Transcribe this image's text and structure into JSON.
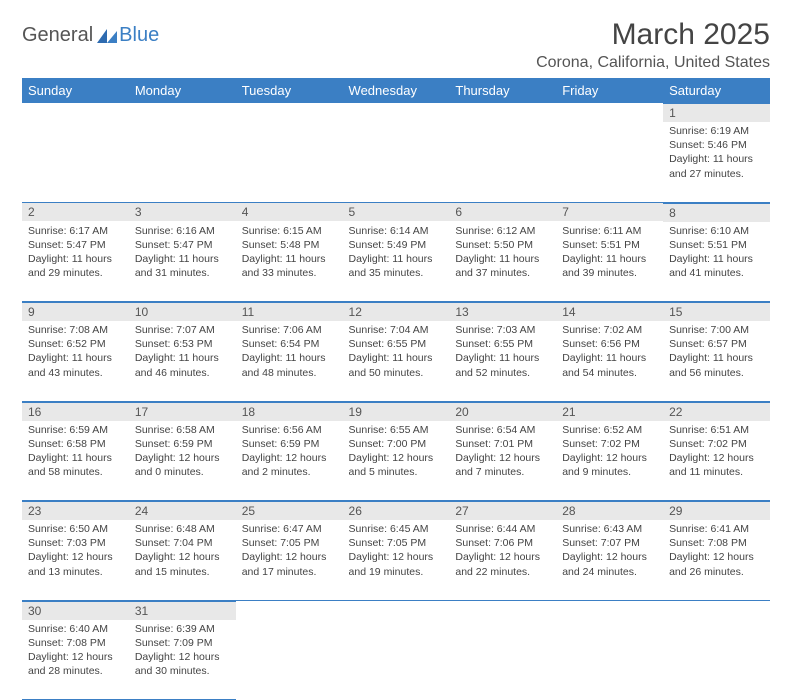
{
  "logo": {
    "general": "General",
    "blue": "Blue"
  },
  "title": "March 2025",
  "location": "Corona, California, United States",
  "colors": {
    "header_bg": "#3b7fc4",
    "header_fg": "#ffffff",
    "daynum_bg": "#e8e8e8",
    "border": "#3b7fc4",
    "text": "#444444"
  },
  "weekdays": [
    "Sunday",
    "Monday",
    "Tuesday",
    "Wednesday",
    "Thursday",
    "Friday",
    "Saturday"
  ],
  "weeks": [
    [
      null,
      null,
      null,
      null,
      null,
      null,
      {
        "n": "1",
        "sr": "6:19 AM",
        "ss": "5:46 PM",
        "dh": "11",
        "dm": "27"
      }
    ],
    [
      {
        "n": "2",
        "sr": "6:17 AM",
        "ss": "5:47 PM",
        "dh": "11",
        "dm": "29"
      },
      {
        "n": "3",
        "sr": "6:16 AM",
        "ss": "5:47 PM",
        "dh": "11",
        "dm": "31"
      },
      {
        "n": "4",
        "sr": "6:15 AM",
        "ss": "5:48 PM",
        "dh": "11",
        "dm": "33"
      },
      {
        "n": "5",
        "sr": "6:14 AM",
        "ss": "5:49 PM",
        "dh": "11",
        "dm": "35"
      },
      {
        "n": "6",
        "sr": "6:12 AM",
        "ss": "5:50 PM",
        "dh": "11",
        "dm": "37"
      },
      {
        "n": "7",
        "sr": "6:11 AM",
        "ss": "5:51 PM",
        "dh": "11",
        "dm": "39"
      },
      {
        "n": "8",
        "sr": "6:10 AM",
        "ss": "5:51 PM",
        "dh": "11",
        "dm": "41"
      }
    ],
    [
      {
        "n": "9",
        "sr": "7:08 AM",
        "ss": "6:52 PM",
        "dh": "11",
        "dm": "43"
      },
      {
        "n": "10",
        "sr": "7:07 AM",
        "ss": "6:53 PM",
        "dh": "11",
        "dm": "46"
      },
      {
        "n": "11",
        "sr": "7:06 AM",
        "ss": "6:54 PM",
        "dh": "11",
        "dm": "48"
      },
      {
        "n": "12",
        "sr": "7:04 AM",
        "ss": "6:55 PM",
        "dh": "11",
        "dm": "50"
      },
      {
        "n": "13",
        "sr": "7:03 AM",
        "ss": "6:55 PM",
        "dh": "11",
        "dm": "52"
      },
      {
        "n": "14",
        "sr": "7:02 AM",
        "ss": "6:56 PM",
        "dh": "11",
        "dm": "54"
      },
      {
        "n": "15",
        "sr": "7:00 AM",
        "ss": "6:57 PM",
        "dh": "11",
        "dm": "56"
      }
    ],
    [
      {
        "n": "16",
        "sr": "6:59 AM",
        "ss": "6:58 PM",
        "dh": "11",
        "dm": "58"
      },
      {
        "n": "17",
        "sr": "6:58 AM",
        "ss": "6:59 PM",
        "dh": "12",
        "dm": "0"
      },
      {
        "n": "18",
        "sr": "6:56 AM",
        "ss": "6:59 PM",
        "dh": "12",
        "dm": "2"
      },
      {
        "n": "19",
        "sr": "6:55 AM",
        "ss": "7:00 PM",
        "dh": "12",
        "dm": "5"
      },
      {
        "n": "20",
        "sr": "6:54 AM",
        "ss": "7:01 PM",
        "dh": "12",
        "dm": "7"
      },
      {
        "n": "21",
        "sr": "6:52 AM",
        "ss": "7:02 PM",
        "dh": "12",
        "dm": "9"
      },
      {
        "n": "22",
        "sr": "6:51 AM",
        "ss": "7:02 PM",
        "dh": "12",
        "dm": "11"
      }
    ],
    [
      {
        "n": "23",
        "sr": "6:50 AM",
        "ss": "7:03 PM",
        "dh": "12",
        "dm": "13"
      },
      {
        "n": "24",
        "sr": "6:48 AM",
        "ss": "7:04 PM",
        "dh": "12",
        "dm": "15"
      },
      {
        "n": "25",
        "sr": "6:47 AM",
        "ss": "7:05 PM",
        "dh": "12",
        "dm": "17"
      },
      {
        "n": "26",
        "sr": "6:45 AM",
        "ss": "7:05 PM",
        "dh": "12",
        "dm": "19"
      },
      {
        "n": "27",
        "sr": "6:44 AM",
        "ss": "7:06 PM",
        "dh": "12",
        "dm": "22"
      },
      {
        "n": "28",
        "sr": "6:43 AM",
        "ss": "7:07 PM",
        "dh": "12",
        "dm": "24"
      },
      {
        "n": "29",
        "sr": "6:41 AM",
        "ss": "7:08 PM",
        "dh": "12",
        "dm": "26"
      }
    ],
    [
      {
        "n": "30",
        "sr": "6:40 AM",
        "ss": "7:08 PM",
        "dh": "12",
        "dm": "28"
      },
      {
        "n": "31",
        "sr": "6:39 AM",
        "ss": "7:09 PM",
        "dh": "12",
        "dm": "30"
      },
      null,
      null,
      null,
      null,
      null
    ]
  ],
  "labels": {
    "sunrise": "Sunrise:",
    "sunset": "Sunset:",
    "daylight": "Daylight:",
    "hours": "hours",
    "and": "and",
    "minutes": "minutes."
  }
}
